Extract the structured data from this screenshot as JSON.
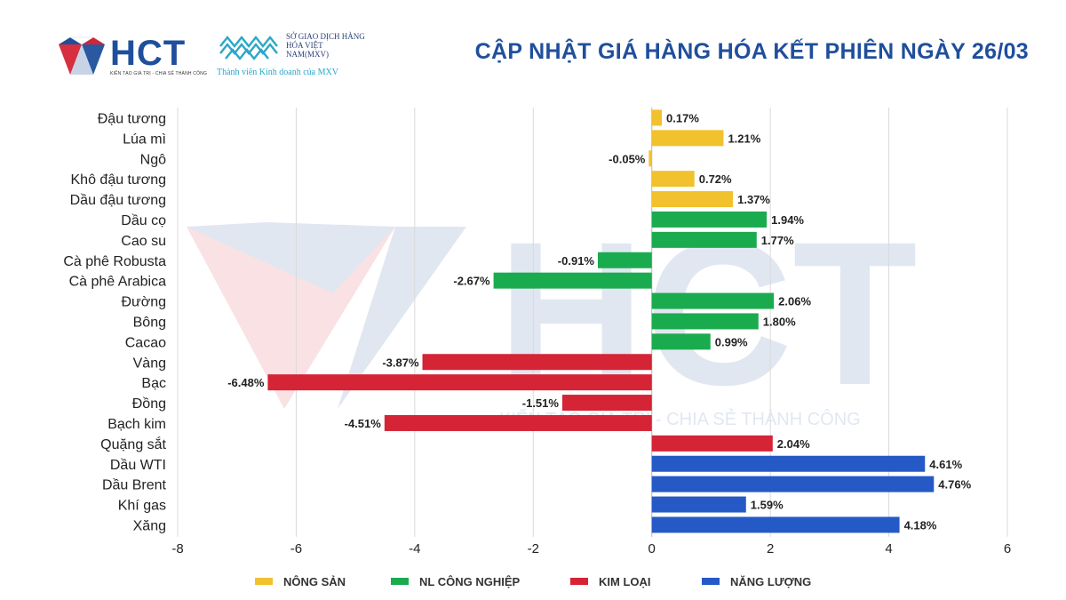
{
  "header": {
    "logo_hct_text": "HCT",
    "logo_hct_slogan": "KIẾN TẠO GIÁ TRỊ - CHIA SẺ THÀNH CÔNG",
    "logo_mxv_name": "SỞ GIAO DỊCH HÀNG HÓA VIỆT NAM(MXV)",
    "logo_mxv_member": "Thành viên Kinh doanh của MXV",
    "title": "CẬP NHẬT GIÁ HÀNG HÓA KẾT PHIÊN NGÀY 26/03"
  },
  "watermark": {
    "text": "HCT",
    "slogan": "KIẾN TẠO GIÁ TRỊ - CHIA SẺ THÀNH CÔNG"
  },
  "colors": {
    "nong_san": "#f2c12e",
    "nl_cong_nghiep": "#1aab4f",
    "kim_loai": "#d42435",
    "nang_luong": "#2559c6",
    "title": "#1f4f9c"
  },
  "chart_data": {
    "type": "bar",
    "orientation": "horizontal",
    "xlim": [
      -8,
      6
    ],
    "xticks": [
      -8,
      -6,
      -4,
      -2,
      0,
      2,
      4,
      6
    ],
    "grid": true,
    "legend_position": "bottom",
    "legend": [
      {
        "label": "NÔNG SẢN",
        "color": "#f2c12e"
      },
      {
        "label": "NL CÔNG NGHIỆP",
        "color": "#1aab4f"
      },
      {
        "label": "KIM LOẠI",
        "color": "#d42435"
      },
      {
        "label": "NĂNG LƯỢNG",
        "color": "#2559c6"
      }
    ],
    "items": [
      {
        "category": "Đậu tương",
        "value": 0.17,
        "label": "0.17%",
        "group": 0
      },
      {
        "category": "Lúa mì",
        "value": 1.21,
        "label": "1.21%",
        "group": 0
      },
      {
        "category": "Ngô",
        "value": -0.05,
        "label": "-0.05%",
        "group": 0
      },
      {
        "category": "Khô đậu tương",
        "value": 0.72,
        "label": "0.72%",
        "group": 0
      },
      {
        "category": "Dầu đậu tương",
        "value": 1.37,
        "label": "1.37%",
        "group": 0
      },
      {
        "category": "Dầu cọ",
        "value": 1.94,
        "label": "1.94%",
        "group": 1
      },
      {
        "category": "Cao su",
        "value": 1.77,
        "label": "1.77%",
        "group": 1
      },
      {
        "category": "Cà phê Robusta",
        "value": -0.91,
        "label": "-0.91%",
        "group": 1
      },
      {
        "category": "Cà phê Arabica",
        "value": -2.67,
        "label": "-2.67%",
        "group": 1
      },
      {
        "category": "Đường",
        "value": 2.06,
        "label": "2.06%",
        "group": 1
      },
      {
        "category": "Bông",
        "value": 1.8,
        "label": "1.80%",
        "group": 1
      },
      {
        "category": "Cacao",
        "value": 0.99,
        "label": "0.99%",
        "group": 1
      },
      {
        "category": "Vàng",
        "value": -3.87,
        "label": "-3.87%",
        "group": 2
      },
      {
        "category": "Bạc",
        "value": -6.48,
        "label": "-6.48%",
        "group": 2
      },
      {
        "category": "Đồng",
        "value": -1.51,
        "label": "-1.51%",
        "group": 2
      },
      {
        "category": "Bạch kim",
        "value": -4.51,
        "label": "-4.51%",
        "group": 2
      },
      {
        "category": "Quặng sắt",
        "value": 2.04,
        "label": "2.04%",
        "group": 2
      },
      {
        "category": "Dầu WTI",
        "value": 4.61,
        "label": "4.61%",
        "group": 3
      },
      {
        "category": "Dầu Brent",
        "value": 4.76,
        "label": "4.76%",
        "group": 3
      },
      {
        "category": "Khí gas",
        "value": 1.59,
        "label": "1.59%",
        "group": 3
      },
      {
        "category": "Xăng",
        "value": 4.18,
        "label": "4.18%",
        "group": 3
      }
    ]
  }
}
